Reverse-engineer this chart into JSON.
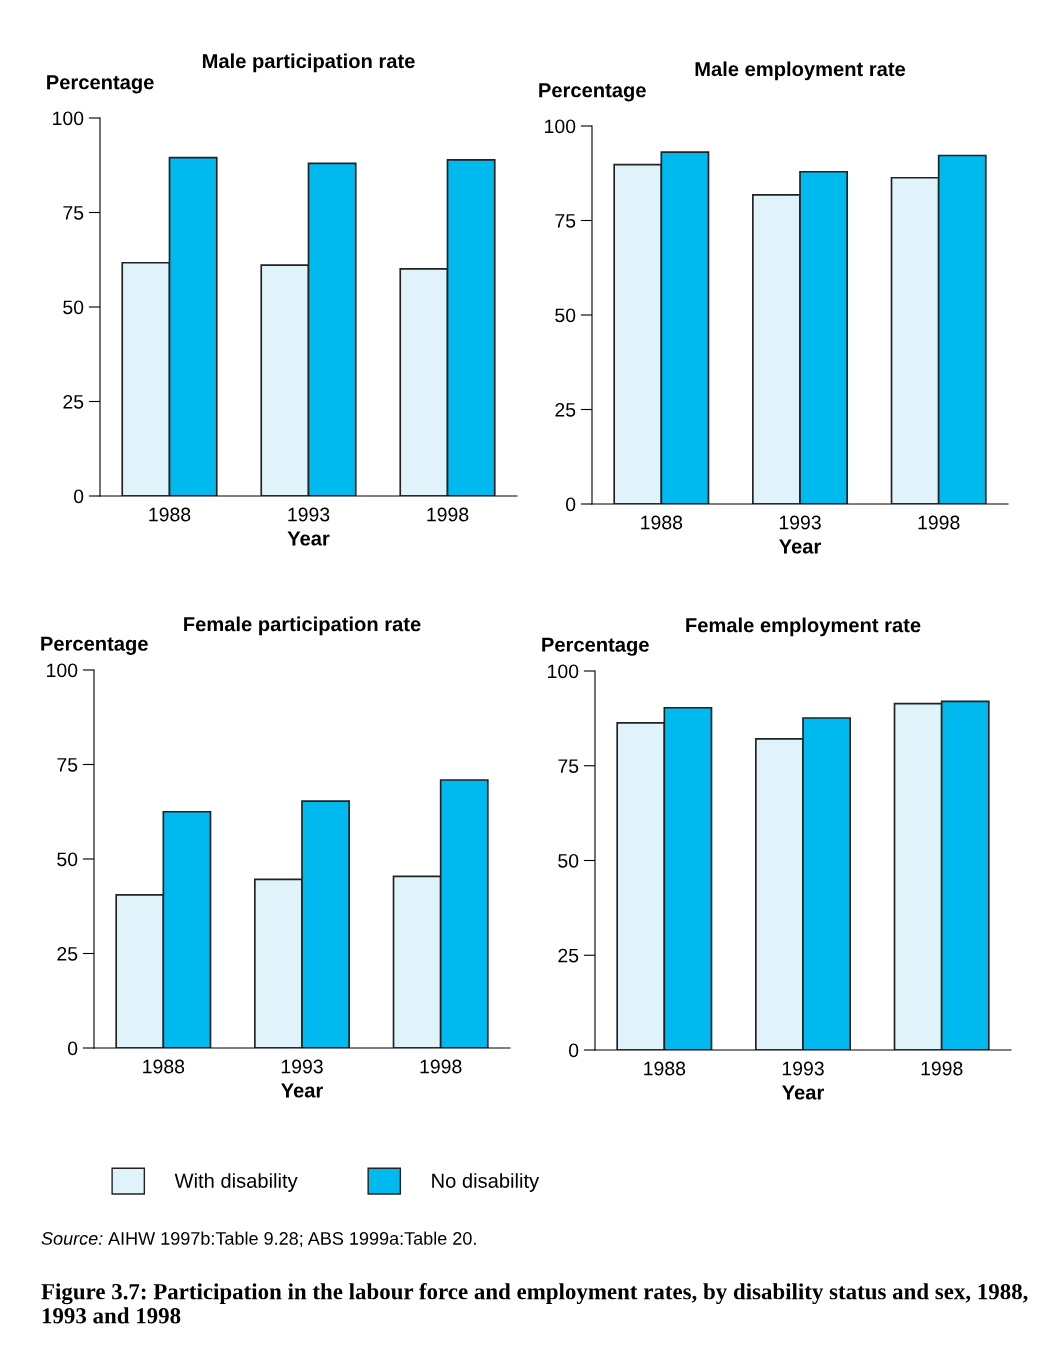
{
  "chart_data": [
    {
      "type": "bar",
      "title": "Male participation rate",
      "ylabel": "Percentage",
      "xlabel": "Year",
      "categories": [
        "1988",
        "1993",
        "1998"
      ],
      "series": [
        {
          "color": "#e0f2fa",
          "values": [
            61.7,
            61.1,
            60.1
          ]
        },
        {
          "color": "#00b9ee",
          "values": [
            89.5,
            88.0,
            88.9
          ]
        }
      ],
      "ylim": [
        0,
        100
      ],
      "yticks": [
        0,
        25,
        50,
        75,
        100
      ],
      "grid": false
    },
    {
      "type": "bar",
      "title": "Male employment rate",
      "ylabel": "Percentage",
      "xlabel": "Year",
      "categories": [
        "1988",
        "1993",
        "1998"
      ],
      "series": [
        {
          "color": "#e0f2fa",
          "values": [
            89.8,
            81.8,
            86.3
          ]
        },
        {
          "color": "#00b9ee",
          "values": [
            93.1,
            87.9,
            92.2
          ]
        }
      ],
      "ylim": [
        0,
        100
      ],
      "yticks": [
        0,
        25,
        50,
        75,
        100
      ],
      "grid": false
    },
    {
      "type": "bar",
      "title": "Female participation rate",
      "ylabel": "Percentage",
      "xlabel": "Year",
      "categories": [
        "1988",
        "1993",
        "1998"
      ],
      "series": [
        {
          "name": "With disability",
          "color": "#e0f2fa",
          "values": [
            40.5,
            44.6,
            45.4
          ]
        },
        {
          "name": "No disability",
          "color": "#00b9ee",
          "values": [
            62.5,
            65.3,
            70.9
          ]
        }
      ],
      "ylim": [
        0,
        100
      ],
      "yticks": [
        0,
        25,
        50,
        75,
        100
      ],
      "grid": false,
      "legend": "bottom"
    },
    {
      "type": "bar",
      "title": "Female employment rate",
      "ylabel": "Percentage",
      "xlabel": "Year",
      "categories": [
        "1988",
        "1993",
        "1998"
      ],
      "series": [
        {
          "color": "#e0f2fa",
          "values": [
            86.3,
            82.1,
            91.4
          ]
        },
        {
          "color": "#00b9ee",
          "values": [
            90.3,
            87.6,
            92.0
          ]
        }
      ],
      "ylim": [
        0,
        100
      ],
      "yticks": [
        0,
        25,
        50,
        75,
        100
      ],
      "grid": false,
      "annotations": [
        "Source: AIHW 1997b:Table 9.28; ABS 1999a:Table 20.",
        "Figure 3.7: Participation in the labour force and employment rates, by disability status and sex, 1988, 1993 and 1998"
      ]
    }
  ]
}
